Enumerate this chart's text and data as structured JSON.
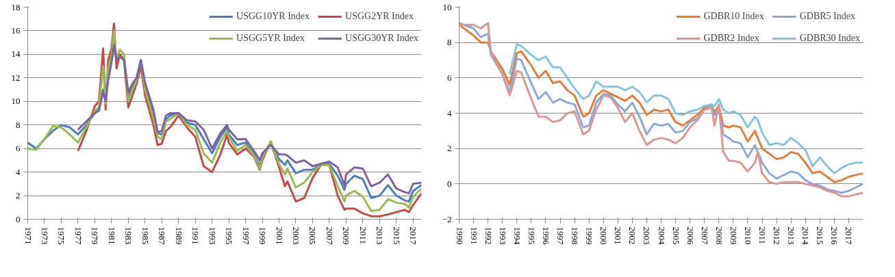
{
  "chart_data": [
    {
      "type": "line",
      "legend": "top right",
      "grid": "y",
      "marker": "none",
      "line_style": "solid",
      "x": [
        1971,
        1972,
        1973,
        1974,
        1975,
        1976,
        1977,
        1978,
        1979,
        1979.5,
        1980,
        1980.3,
        1980.6,
        1981,
        1981.3,
        1981.6,
        1982,
        1982.5,
        1983,
        1983.5,
        1984,
        1984.5,
        1985,
        1986,
        1986.5,
        1987,
        1987.5,
        1988,
        1989,
        1990,
        1991,
        1992,
        1993,
        1994,
        1994.8,
        1995,
        1996,
        1997,
        1998,
        1998.7,
        1999,
        2000,
        2001,
        2001.7,
        2002,
        2003,
        2004,
        2005,
        2006,
        2007,
        2008,
        2008.8,
        2009,
        2010,
        2011,
        2012,
        2013,
        2014,
        2015,
        2016,
        2016.5,
        2017,
        2018
      ],
      "xlim": [
        1971,
        2018
      ],
      "ylim": [
        0,
        18
      ],
      "yticks": [
        0,
        2,
        4,
        6,
        8,
        10,
        12,
        14,
        16,
        18
      ],
      "xticks": [
        1971,
        1973,
        1975,
        1977,
        1979,
        1981,
        1983,
        1985,
        1987,
        1989,
        1991,
        1993,
        1995,
        1997,
        1999,
        2001,
        2003,
        2005,
        2007,
        2009,
        2011,
        2013,
        2015,
        2017
      ],
      "series": [
        {
          "name": "USGG10YR Index",
          "color": "#4a7ebb",
          "values": [
            6.5,
            6.0,
            6.8,
            7.5,
            8.0,
            7.8,
            7.2,
            8.0,
            9.0,
            9.3,
            11.0,
            10.0,
            12.0,
            13.5,
            15.0,
            13.5,
            14.0,
            13.5,
            10.4,
            11.3,
            12.0,
            13.5,
            11.5,
            9.0,
            7.3,
            7.2,
            8.5,
            8.8,
            9.0,
            8.2,
            8.0,
            6.8,
            5.6,
            7.0,
            7.8,
            7.2,
            6.3,
            6.5,
            5.5,
            4.5,
            5.3,
            6.5,
            5.1,
            4.6,
            5.0,
            3.9,
            4.2,
            4.2,
            4.6,
            4.7,
            3.7,
            2.5,
            3.0,
            3.7,
            3.4,
            1.8,
            2.0,
            2.9,
            2.0,
            1.6,
            1.5,
            2.4,
            2.9
          ]
        },
        {
          "name": "USGG2YR Index",
          "color": "#be4b48",
          "values": [
            null,
            null,
            null,
            null,
            null,
            null,
            5.8,
            7.5,
            9.6,
            10.0,
            14.5,
            9.3,
            13.5,
            14.5,
            16.6,
            12.8,
            14.0,
            13.5,
            9.5,
            10.5,
            11.5,
            13.0,
            10.5,
            8.0,
            6.3,
            6.4,
            7.5,
            7.8,
            8.8,
            7.8,
            7.0,
            4.5,
            4.0,
            5.5,
            7.2,
            6.5,
            5.5,
            6.0,
            5.3,
            4.2,
            5.0,
            6.6,
            4.4,
            2.8,
            3.2,
            1.5,
            1.8,
            3.5,
            4.6,
            4.6,
            2.0,
            0.8,
            0.9,
            0.9,
            0.5,
            0.25,
            0.25,
            0.4,
            0.6,
            0.8,
            0.6,
            1.2,
            2.2
          ]
        },
        {
          "name": "USGG5YR Index",
          "color": "#98b954",
          "values": [
            6.0,
            5.9,
            6.8,
            7.9,
            7.8,
            7.2,
            6.5,
            7.8,
            9.2,
            9.5,
            13.0,
            9.8,
            12.8,
            14.0,
            16.0,
            13.5,
            14.4,
            14.0,
            10.0,
            11.0,
            11.8,
            13.5,
            11.0,
            8.5,
            7.0,
            6.8,
            8.3,
            8.5,
            9.0,
            8.0,
            7.6,
            5.6,
            4.8,
            6.5,
            7.5,
            7.0,
            5.8,
            6.3,
            5.4,
            4.3,
            5.2,
            6.6,
            4.7,
            3.8,
            4.3,
            2.7,
            3.1,
            4.0,
            4.6,
            4.6,
            2.8,
            1.5,
            2.0,
            2.4,
            1.9,
            0.7,
            0.8,
            1.7,
            1.4,
            1.3,
            1.0,
            1.9,
            2.6
          ]
        },
        {
          "name": "USGG30YR Index",
          "color": "#7d60a0",
          "values": [
            null,
            null,
            null,
            null,
            null,
            null,
            7.6,
            8.3,
            9.0,
            9.2,
            10.8,
            10.0,
            11.8,
            13.3,
            14.8,
            13.5,
            13.8,
            13.5,
            10.8,
            11.5,
            12.0,
            13.5,
            11.6,
            9.3,
            7.4,
            7.5,
            8.8,
            9.0,
            9.0,
            8.4,
            8.3,
            7.6,
            6.0,
            7.3,
            8.0,
            7.6,
            6.8,
            6.8,
            5.8,
            5.0,
            5.6,
            6.3,
            5.5,
            5.5,
            5.4,
            4.8,
            5.0,
            4.5,
            4.7,
            4.9,
            4.4,
            2.9,
            3.8,
            4.4,
            4.3,
            2.8,
            3.1,
            3.8,
            2.6,
            2.3,
            2.2,
            3.0,
            3.1
          ]
        }
      ]
    },
    {
      "type": "line",
      "legend": "top right",
      "grid": "y",
      "marker": "none",
      "line_style": "solid",
      "x": [
        1990,
        1991,
        1991.5,
        1992,
        1992.2,
        1993,
        1993.5,
        1994,
        1994.3,
        1995,
        1995.5,
        1996,
        1996.5,
        1997,
        1997.5,
        1998,
        1998.6,
        1999,
        1999.5,
        2000,
        2000.5,
        2001,
        2001.5,
        2002,
        2002.5,
        2003,
        2003.5,
        2004,
        2004.5,
        2005,
        2005.5,
        2006,
        2006.5,
        2007,
        2007.5,
        2007.7,
        2008,
        2008.3,
        2008.7,
        2009,
        2009.5,
        2010,
        2010.5,
        2010.7,
        2011,
        2011.5,
        2012,
        2012.5,
        2013,
        2013.5,
        2014,
        2014.5,
        2015,
        2015.5,
        2016,
        2016.5,
        2017,
        2017.5,
        2018
      ],
      "xlim": [
        1990,
        2018
      ],
      "ylim": [
        -2,
        10
      ],
      "yticks": [
        -2,
        0,
        2,
        4,
        6,
        8,
        10
      ],
      "xticks": [
        1990,
        1991,
        1992,
        1993,
        1994,
        1995,
        1996,
        1997,
        1998,
        1999,
        2000,
        2001,
        2002,
        2003,
        2004,
        2005,
        2006,
        2007,
        2008,
        2009,
        2010,
        2011,
        2012,
        2013,
        2014,
        2015,
        2016,
        2017
      ],
      "series": [
        {
          "name": "GDBR10 Index",
          "color": "#e07b39",
          "values": [
            9.0,
            8.4,
            8.0,
            8.0,
            7.5,
            6.5,
            5.6,
            7.4,
            7.5,
            6.7,
            6.0,
            6.4,
            5.7,
            5.8,
            5.3,
            5.0,
            3.8,
            4.0,
            5.0,
            5.3,
            5.1,
            4.9,
            4.7,
            5.0,
            4.6,
            3.9,
            4.2,
            4.1,
            4.2,
            3.5,
            3.3,
            3.6,
            3.9,
            4.3,
            4.4,
            4.1,
            4.4,
            3.3,
            3.2,
            3.3,
            3.2,
            2.4,
            3.0,
            2.6,
            2.0,
            1.7,
            1.4,
            1.5,
            1.8,
            1.7,
            1.2,
            0.6,
            0.7,
            0.4,
            0.1,
            0.2,
            0.4,
            0.5,
            0.6
          ]
        },
        {
          "name": "GDBR5 Index",
          "color": "#8ea7d2",
          "values": [
            9.1,
            8.8,
            8.3,
            8.5,
            7.3,
            6.2,
            5.2,
            7.1,
            7.0,
            5.7,
            4.8,
            5.2,
            4.6,
            4.8,
            4.6,
            4.5,
            3.2,
            3.3,
            4.6,
            5.1,
            5.0,
            4.5,
            4.1,
            4.6,
            3.8,
            2.8,
            3.4,
            3.3,
            3.4,
            2.9,
            3.0,
            3.5,
            3.7,
            4.2,
            4.4,
            3.9,
            4.3,
            2.8,
            2.6,
            2.4,
            2.3,
            1.5,
            2.2,
            1.8,
            1.2,
            0.6,
            0.3,
            0.5,
            0.7,
            0.6,
            0.2,
            0.0,
            -0.1,
            -0.3,
            -0.4,
            -0.5,
            -0.4,
            -0.2,
            0.0
          ]
        },
        {
          "name": "GDBR2 Index",
          "color": "#d99694",
          "values": [
            9.0,
            9.0,
            8.8,
            9.1,
            7.5,
            6.2,
            5.0,
            6.4,
            6.3,
            4.8,
            3.8,
            3.8,
            3.5,
            3.6,
            4.0,
            4.1,
            2.8,
            3.0,
            4.2,
            5.0,
            4.9,
            4.3,
            3.5,
            4.0,
            3.0,
            2.2,
            2.5,
            2.6,
            2.5,
            2.3,
            2.6,
            3.2,
            3.6,
            4.2,
            4.3,
            3.3,
            4.5,
            1.8,
            1.3,
            1.3,
            1.2,
            0.7,
            1.2,
            1.8,
            0.6,
            0.1,
            0.0,
            0.1,
            0.1,
            0.1,
            0.0,
            -0.1,
            -0.2,
            -0.4,
            -0.5,
            -0.7,
            -0.7,
            -0.6,
            -0.5
          ]
        },
        {
          "name": "GDBR30 Index",
          "color": "#84c3d8",
          "values": [
            null,
            null,
            null,
            null,
            null,
            null,
            6.2,
            7.9,
            7.8,
            7.3,
            7.0,
            7.2,
            6.6,
            6.6,
            6.0,
            5.4,
            4.8,
            5.0,
            5.8,
            5.5,
            5.5,
            5.5,
            5.3,
            5.5,
            5.2,
            4.6,
            5.0,
            5.0,
            4.8,
            4.0,
            3.9,
            4.1,
            4.2,
            4.4,
            4.5,
            4.4,
            4.8,
            4.2,
            4.0,
            4.1,
            3.9,
            3.2,
            3.8,
            3.6,
            2.9,
            2.2,
            2.3,
            2.2,
            2.6,
            2.3,
            1.9,
            1.0,
            1.5,
            1.0,
            0.6,
            0.9,
            1.1,
            1.2,
            1.2
          ]
        }
      ]
    }
  ]
}
